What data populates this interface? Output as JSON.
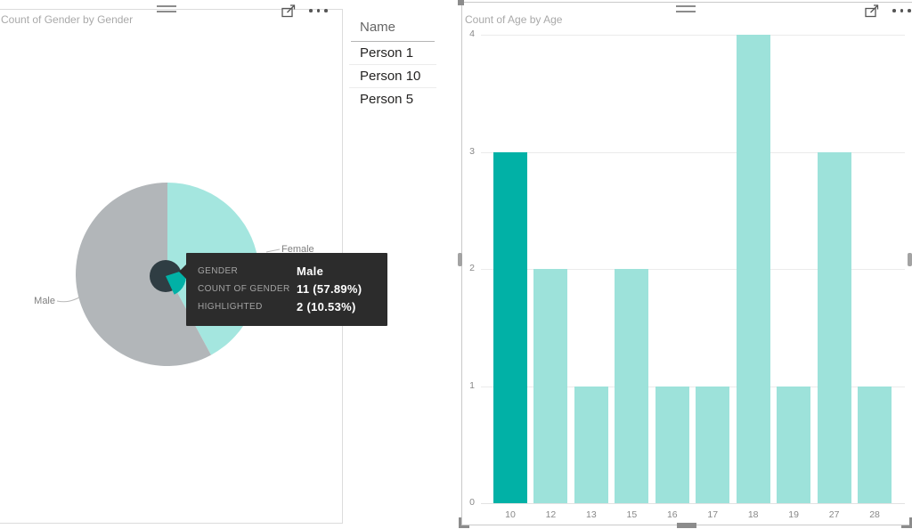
{
  "pie_visual": {
    "title": "Count of Gender by Gender",
    "data_labels": {
      "male": "Male",
      "female": "Female"
    },
    "tooltip": {
      "background": "#2c2c2c",
      "rows": [
        {
          "label": "GENDER",
          "value": "Male"
        },
        {
          "label": "COUNT OF GENDER",
          "value": "11 (57.89%)"
        },
        {
          "label": "HIGHLIGHTED",
          "value": "2 (10.53%)"
        }
      ]
    }
  },
  "table_visual": {
    "column_header": "Name",
    "rows": [
      "Person 1",
      "Person 10",
      "Person 5"
    ]
  },
  "bar_visual": {
    "title": "Count of Age by Age"
  },
  "chart_data": [
    {
      "type": "pie",
      "title": "Count of Gender by Gender",
      "total": 19,
      "slices": [
        {
          "label": "Female",
          "value": 8,
          "percent": 42.11,
          "color": "#a4e6df"
        },
        {
          "label": "Male",
          "value": 11,
          "percent": 57.89,
          "color": "#b2b6b9",
          "highlighted_value": 2,
          "highlighted_percent": 10.53
        }
      ],
      "center_colors": {
        "hole": "#2f3d43",
        "highlight_wedge": "#01b1a6"
      },
      "legend_position": "none"
    },
    {
      "type": "bar",
      "title": "Count of Age by Age",
      "categories": [
        "10",
        "12",
        "13",
        "15",
        "16",
        "17",
        "18",
        "19",
        "27",
        "28"
      ],
      "values": [
        3,
        2,
        1,
        2,
        1,
        1,
        4,
        1,
        3,
        1
      ],
      "highlighted_category": "10",
      "xlabel": "",
      "ylabel": "",
      "ylim": [
        0,
        4
      ],
      "yticks": [
        0,
        1,
        2,
        3,
        4
      ],
      "grid": true,
      "colors": {
        "highlighted": "#01b1a6",
        "default": "#9de2da"
      }
    }
  ],
  "colors": {
    "accent_teal": "#01b1a6",
    "muted_teal": "#9de2da",
    "male_gray": "#b2b6b9"
  }
}
